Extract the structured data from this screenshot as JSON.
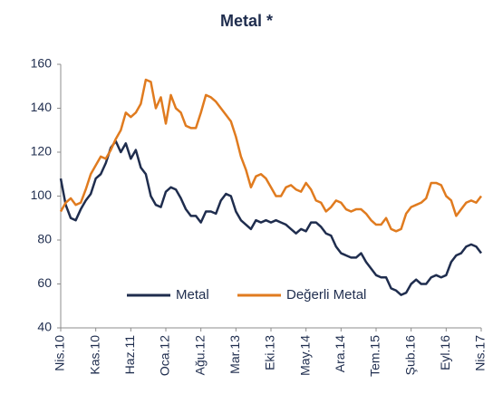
{
  "chart_data": {
    "type": "line",
    "title": "Metal *",
    "categories": [
      "Nis.10",
      null,
      null,
      null,
      null,
      null,
      null,
      "Kas.10",
      null,
      null,
      null,
      null,
      null,
      null,
      "Haz.11",
      null,
      null,
      null,
      null,
      null,
      null,
      "Oca.12",
      null,
      null,
      null,
      null,
      null,
      null,
      "Ağu.12",
      null,
      null,
      null,
      null,
      null,
      null,
      "Mar.13",
      null,
      null,
      null,
      null,
      null,
      null,
      "Eki.13",
      null,
      null,
      null,
      null,
      null,
      null,
      "May.14",
      null,
      null,
      null,
      null,
      null,
      null,
      "Ara.14",
      null,
      null,
      null,
      null,
      null,
      null,
      "Tem.15",
      null,
      null,
      null,
      null,
      null,
      null,
      "Şub.16",
      null,
      null,
      null,
      null,
      null,
      null,
      "Eyl.16",
      null,
      null,
      null,
      null,
      null,
      null,
      "Nis.17"
    ],
    "series": [
      {
        "name": "Metal",
        "color": "#1f2d4e",
        "values": [
          108,
          96,
          90,
          89,
          94,
          98,
          101,
          108,
          110,
          115,
          122,
          125,
          120,
          124,
          117,
          121,
          113,
          110,
          100,
          96,
          95,
          102,
          104,
          103,
          99,
          94,
          91,
          91,
          88,
          93,
          93,
          92,
          98,
          101,
          100,
          93,
          89,
          87,
          85,
          89,
          88,
          89,
          88,
          89,
          88,
          87,
          85,
          83,
          85,
          84,
          88,
          88,
          86,
          83,
          82,
          77,
          74,
          73,
          72,
          72,
          74,
          70,
          67,
          64,
          63,
          63,
          58,
          57,
          55,
          56,
          60,
          62,
          60,
          60,
          63,
          64,
          63,
          64,
          70,
          73,
          74,
          77,
          78,
          77,
          74
        ]
      },
      {
        "name": "Değerli Metal",
        "color": "#e07b1f",
        "values": [
          93,
          97,
          99,
          96,
          97,
          103,
          110,
          114,
          118,
          117,
          121,
          126,
          130,
          138,
          136,
          138,
          142,
          153,
          152,
          140,
          145,
          133,
          146,
          140,
          138,
          132,
          131,
          131,
          138,
          146,
          145,
          143,
          140,
          137,
          134,
          127,
          118,
          112,
          104,
          109,
          110,
          108,
          104,
          100,
          100,
          104,
          105,
          103,
          102,
          106,
          103,
          98,
          97,
          93,
          95,
          98,
          97,
          94,
          93,
          94,
          94,
          92,
          89,
          87,
          87,
          90,
          85,
          84,
          85,
          92,
          95,
          96,
          97,
          99,
          106,
          106,
          105,
          100,
          98,
          91,
          94,
          97,
          98,
          97,
          100
        ]
      }
    ],
    "ylim": [
      40,
      160
    ],
    "yticks": [
      40,
      60,
      80,
      100,
      120,
      140,
      160
    ],
    "grid": false
  }
}
